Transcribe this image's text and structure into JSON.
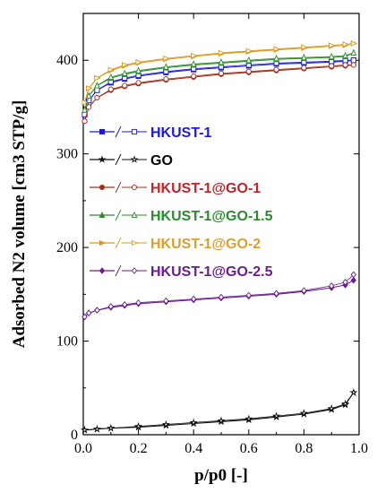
{
  "chart_data": {
    "type": "line",
    "xlabel": "p/p0 [-]",
    "ylabel": "Adsorbed N2 volume [cm3 STP/g]",
    "xlim": [
      0.0,
      1.0
    ],
    "ylim": [
      0,
      450
    ],
    "xticks": [
      "0.0",
      "0.2",
      "0.4",
      "0.6",
      "0.8",
      "1.0"
    ],
    "yticks": [
      "0",
      "100",
      "200",
      "300",
      "400"
    ],
    "legend_position": "left-middle",
    "series": [
      {
        "name": "HKUST-1",
        "color": "#1a1adb",
        "marker": "square",
        "legend_color": "#1a1adb",
        "x": [
          0.005,
          0.02,
          0.05,
          0.1,
          0.15,
          0.2,
          0.3,
          0.4,
          0.5,
          0.6,
          0.7,
          0.8,
          0.9,
          0.95,
          0.98
        ],
        "adsorption": [
          342,
          357,
          368,
          376,
          380,
          383,
          387,
          390,
          392,
          394,
          396,
          397,
          398,
          399,
          400
        ],
        "desorption": [
          342,
          357,
          368,
          377,
          381,
          384,
          388,
          391,
          393,
          395,
          397,
          398,
          399,
          400,
          400
        ]
      },
      {
        "name": "GO",
        "color": "#111111",
        "marker": "star",
        "legend_color": "#000000",
        "x": [
          0.005,
          0.05,
          0.1,
          0.2,
          0.3,
          0.4,
          0.5,
          0.6,
          0.7,
          0.8,
          0.9,
          0.95,
          0.98
        ],
        "adsorption": [
          5,
          6,
          7,
          8,
          10,
          12,
          14,
          16,
          19,
          22,
          27,
          32,
          45
        ],
        "desorption": [
          5,
          6,
          7,
          9,
          11,
          13,
          15,
          17,
          20,
          23,
          28,
          33,
          45
        ]
      },
      {
        "name": "HKUST-1@GO-1",
        "color": "#a0301c",
        "marker": "circle",
        "legend_color": "#c0242a",
        "x": [
          0.005,
          0.02,
          0.05,
          0.1,
          0.15,
          0.2,
          0.3,
          0.4,
          0.5,
          0.6,
          0.7,
          0.8,
          0.9,
          0.95,
          0.98
        ],
        "adsorption": [
          335,
          350,
          360,
          368,
          372,
          375,
          379,
          382,
          385,
          387,
          389,
          391,
          393,
          394,
          395
        ],
        "desorption": [
          335,
          350,
          360,
          369,
          373,
          376,
          380,
          383,
          386,
          388,
          390,
          392,
          394,
          395,
          395
        ]
      },
      {
        "name": "HKUST-1@GO-1.5",
        "color": "#2a8c2a",
        "marker": "triangle",
        "legend_color": "#2a8c2a",
        "x": [
          0.005,
          0.02,
          0.05,
          0.1,
          0.15,
          0.2,
          0.3,
          0.4,
          0.5,
          0.6,
          0.7,
          0.8,
          0.9,
          0.95,
          0.98
        ],
        "adsorption": [
          347,
          362,
          373,
          381,
          385,
          388,
          392,
          395,
          397,
          399,
          401,
          402,
          403,
          404,
          408
        ],
        "desorption": [
          347,
          362,
          373,
          382,
          386,
          389,
          393,
          396,
          398,
          400,
          402,
          403,
          404,
          405,
          408
        ]
      },
      {
        "name": "HKUST-1@GO-2",
        "color": "#d99a1e",
        "marker": "triangle-right",
        "legend_color": "#d9a030",
        "x": [
          0.005,
          0.02,
          0.05,
          0.1,
          0.15,
          0.2,
          0.3,
          0.4,
          0.5,
          0.6,
          0.7,
          0.8,
          0.9,
          0.95,
          0.98
        ],
        "adsorption": [
          355,
          370,
          381,
          389,
          394,
          397,
          401,
          404,
          407,
          409,
          411,
          413,
          415,
          416,
          418
        ],
        "desorption": [
          355,
          370,
          381,
          390,
          395,
          398,
          402,
          405,
          408,
          410,
          412,
          414,
          416,
          417,
          418
        ]
      },
      {
        "name": "HKUST-1@GO-2.5",
        "color": "#6a1d8e",
        "marker": "diamond",
        "legend_color": "#6a1d8e",
        "x": [
          0.005,
          0.02,
          0.05,
          0.1,
          0.15,
          0.2,
          0.3,
          0.4,
          0.5,
          0.6,
          0.7,
          0.8,
          0.9,
          0.95,
          0.98
        ],
        "adsorption": [
          126,
          130,
          133,
          136,
          138,
          140,
          142,
          144,
          146,
          148,
          150,
          153,
          157,
          160,
          165
        ],
        "desorption": [
          126,
          130,
          133,
          137,
          139,
          141,
          143,
          145,
          147,
          149,
          151,
          154,
          159,
          163,
          171
        ]
      }
    ]
  }
}
